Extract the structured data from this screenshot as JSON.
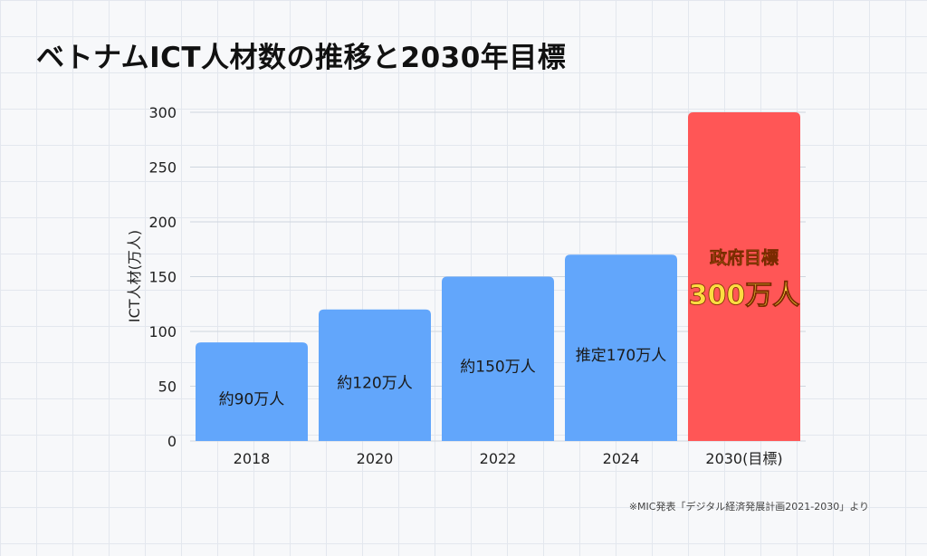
{
  "title": "ベトナムICT人材数の推移と2030年目標",
  "footnote": "※MIC発表「デジタル経済発展計画2021-2030」より",
  "colors": {
    "actual_bar": "#62a6fb",
    "target_bar": "#ff5656",
    "target_label": "#ffdc41",
    "grid": "#cfd6df",
    "text": "#222222"
  },
  "chart_data": {
    "type": "bar",
    "title": "ベトナムICT人材数の推移と2030年目標",
    "xlabel": "",
    "ylabel": "ICT人材(万人)",
    "ylim": [
      0,
      300
    ],
    "yticks": [
      0,
      50,
      100,
      150,
      200,
      250,
      300
    ],
    "grid": true,
    "categories": [
      "2018",
      "2020",
      "2022",
      "2024",
      "2030(目標)"
    ],
    "values": [
      90,
      120,
      150,
      170,
      300
    ],
    "bar_labels": [
      "約90万人",
      "約120万人",
      "約150万人",
      "推定170万人",
      "300万人"
    ],
    "target_label_heading": "政府目標",
    "highlight_index": 4
  }
}
